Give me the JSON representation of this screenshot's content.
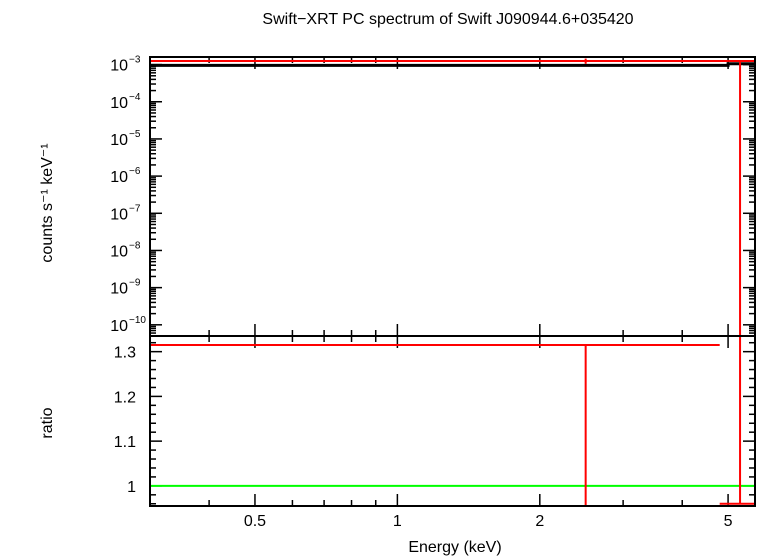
{
  "chart_data": [
    {
      "type": "scatter",
      "title": "Swift−XRT PC spectrum of Swift J090944.6+035420",
      "xlabel": "",
      "ylabel": "counts s⁻¹ keV⁻¹",
      "xscale": "log",
      "yscale": "log",
      "xlim": [
        0.3,
        5.7
      ],
      "ylim": [
        5e-11,
        0.0016
      ],
      "yticks": [
        {
          "v": 1e-10,
          "base": "10",
          "exp": "−10"
        },
        {
          "v": 1e-09,
          "base": "10",
          "exp": "−9"
        },
        {
          "v": 1e-08,
          "base": "10",
          "exp": "−8"
        },
        {
          "v": 1e-07,
          "base": "10",
          "exp": "−7"
        },
        {
          "v": 1e-06,
          "base": "10",
          "exp": "−6"
        },
        {
          "v": 1e-05,
          "base": "10",
          "exp": "−5"
        },
        {
          "v": 0.0001,
          "base": "10",
          "exp": "−4"
        },
        {
          "v": 0.001,
          "base": "10",
          "exp": "−3"
        }
      ],
      "series": [
        {
          "kind": "data",
          "color": "#ff0000",
          "points": [
            {
              "x": 2.5,
              "xlo": 0.3,
              "xhi": 5.0,
              "y": 0.00125,
              "yerr": 0.0002
            },
            {
              "x": 5.3,
              "xlo": 5.0,
              "xhi": 5.7,
              "y": 0.00125,
              "yerr_to_bottom": true
            }
          ]
        },
        {
          "kind": "model",
          "color": "#000000",
          "steps": [
            {
              "xlo": 0.3,
              "xhi": 5.0,
              "y": 0.00095
            },
            {
              "xlo": 5.0,
              "xhi": 5.7,
              "y": 0.00105
            }
          ]
        }
      ]
    },
    {
      "type": "scatter",
      "title": "",
      "xlabel": "Energy (keV)",
      "ylabel": "ratio",
      "xscale": "log",
      "yscale": "linear",
      "xlim": [
        0.3,
        5.7
      ],
      "ylim": [
        0.955,
        1.335
      ],
      "xticks": [
        {
          "v": 0.5,
          "label": "0.5"
        },
        {
          "v": 1,
          "label": "1"
        },
        {
          "v": 2,
          "label": "2"
        },
        {
          "v": 5,
          "label": "5"
        }
      ],
      "yticks": [
        {
          "v": 1,
          "label": "1"
        },
        {
          "v": 1.1,
          "label": "1.1"
        },
        {
          "v": 1.2,
          "label": "1.2"
        },
        {
          "v": 1.3,
          "label": "1.3"
        }
      ],
      "reference_line": {
        "y": 1,
        "color": "#00ff00"
      },
      "series": [
        {
          "kind": "data",
          "color": "#ff0000",
          "points": [
            {
              "x": 2.5,
              "xlo": 0.3,
              "xhi": 4.8,
              "y": 1.315,
              "yerr_to_bottom": true
            },
            {
              "x": 5.3,
              "xlo": 4.8,
              "xhi": 5.7,
              "y": 0.96,
              "yerr_to_top": true
            }
          ]
        }
      ]
    }
  ]
}
